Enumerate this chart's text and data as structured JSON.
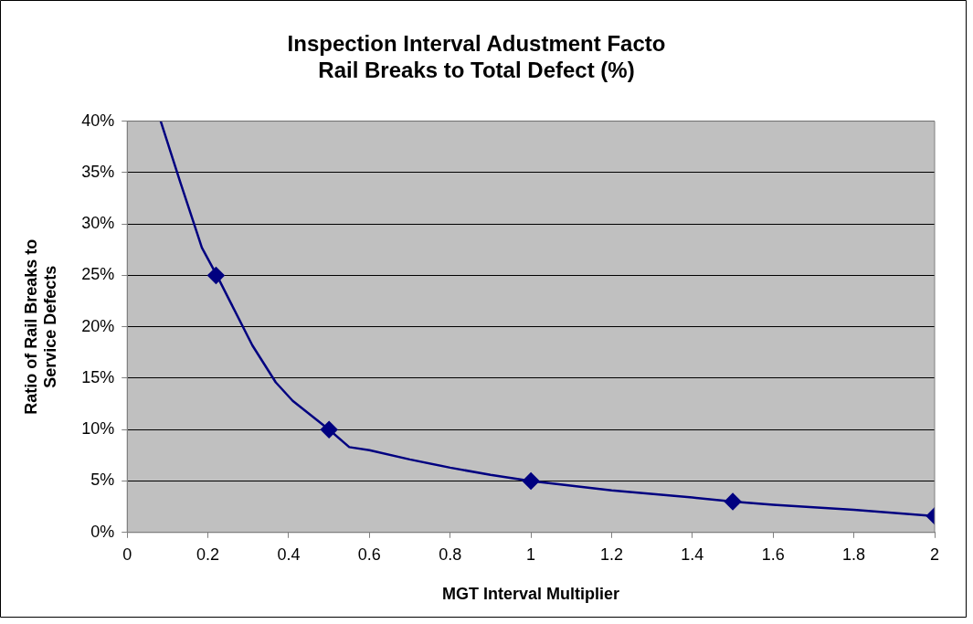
{
  "chart_data": {
    "type": "line",
    "title": "Inspection Interval Adustment Facto\nRail Breaks to Total Defect (%)",
    "xlabel": "MGT Interval Multiplier",
    "ylabel": "Ratio of Rail Breaks to Service Defects",
    "xlim": [
      0,
      2
    ],
    "xticks": [
      0,
      0.2,
      0.4,
      0.6,
      0.8,
      1,
      1.2,
      1.4,
      1.6,
      1.8,
      2
    ],
    "ylim": [
      0,
      40
    ],
    "yticks": [
      {
        "value": 0,
        "label": "0%"
      },
      {
        "value": 5,
        "label": "5%"
      },
      {
        "value": 10,
        "label": "10%"
      },
      {
        "value": 15,
        "label": "15%"
      },
      {
        "value": 20,
        "label": "20%"
      },
      {
        "value": 25,
        "label": "25%"
      },
      {
        "value": 30,
        "label": "30%"
      },
      {
        "value": 35,
        "label": "35%"
      },
      {
        "value": 40,
        "label": "40%"
      }
    ],
    "grid": "y",
    "legend": false,
    "series": [
      {
        "type": "line",
        "color": "#000080",
        "marker": "none",
        "line_style": "solid",
        "x": [
          0.083,
          0.132,
          0.185,
          0.222,
          0.257,
          0.31,
          0.368,
          0.41,
          0.5,
          0.55,
          0.6,
          0.7,
          0.8,
          0.9,
          1,
          1.2,
          1.4,
          1.5,
          1.6,
          1.8,
          2
        ],
        "values": [
          40,
          34,
          27.7,
          25,
          22.3,
          18.2,
          14.6,
          12.8,
          10,
          8.3,
          8,
          7.1,
          6.3,
          5.6,
          5,
          4.1,
          3.4,
          3,
          2.7,
          2.2,
          1.6
        ]
      },
      {
        "type": "scatter",
        "color": "#000080",
        "marker": "diamond",
        "x": [
          0.22,
          0.5,
          1,
          1.5,
          2
        ],
        "values": [
          25,
          10,
          5,
          3,
          1.6
        ]
      }
    ]
  }
}
